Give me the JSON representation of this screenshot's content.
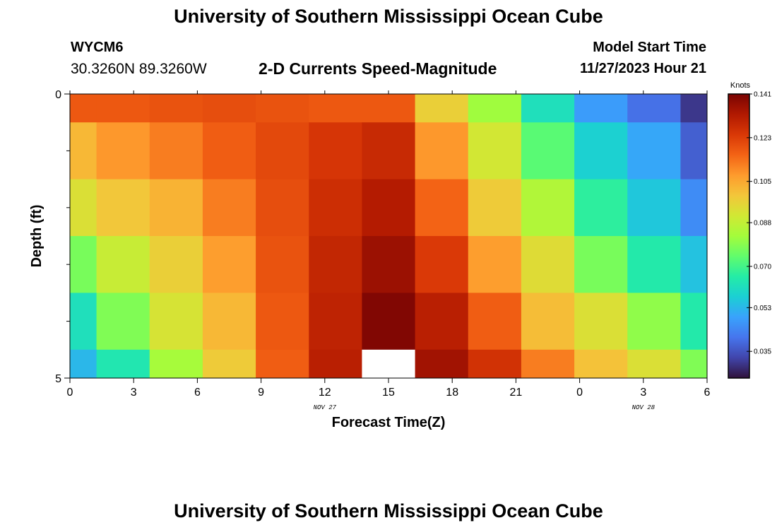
{
  "header": {
    "title": "University of Southern Mississippi Ocean Cube",
    "station_id": "WYCM6",
    "coordinates": "30.3260N  89.3260W",
    "subtitle": "2-D Currents Speed-Magnitude",
    "model_start_label": "Model Start Time",
    "model_start_value": "11/27/2023 Hour 21"
  },
  "footer": {
    "title": "University of Southern Mississippi Ocean Cube"
  },
  "chart_data": {
    "type": "heatmap",
    "title": "2-D Currents Speed-Magnitude",
    "xlabel": "Forecast Time(Z)",
    "ylabel": "Depth (ft)",
    "x_tick_labels": [
      "0",
      "3",
      "6",
      "9",
      "12",
      "15",
      "18",
      "21",
      "0",
      "3",
      "6"
    ],
    "x_hours": [
      0,
      3,
      6,
      9,
      12,
      15,
      18,
      21,
      24,
      27,
      30
    ],
    "date_labels": [
      {
        "text": "NOV 27",
        "hour": 12
      },
      {
        "text": "NOV 28",
        "hour": 27
      }
    ],
    "xlim": [
      0,
      30
    ],
    "ylim": [
      0,
      5
    ],
    "y_tick_labels": [
      "0",
      "5"
    ],
    "y_minor_ticks": [
      1,
      2,
      3,
      4
    ],
    "column_bounds_hours": [
      0,
      1.25,
      3.75,
      6.25,
      8.75,
      11.25,
      13.75,
      16.25,
      18.75,
      21.25,
      23.75,
      26.25,
      28.75,
      30
    ],
    "row_bounds_ft": [
      0,
      0.5,
      1.5,
      2.5,
      3.5,
      4.5,
      5
    ],
    "values": [
      [
        0.118,
        0.118,
        0.119,
        0.12,
        0.119,
        0.118,
        0.118,
        0.097,
        0.082,
        0.062,
        0.048,
        0.04,
        0.03
      ],
      [
        0.102,
        0.108,
        0.112,
        0.117,
        0.121,
        0.125,
        0.128,
        0.108,
        0.091,
        0.073,
        0.058,
        0.05,
        0.037
      ],
      [
        0.093,
        0.099,
        0.103,
        0.112,
        0.12,
        0.127,
        0.132,
        0.116,
        0.098,
        0.085,
        0.067,
        0.056,
        0.045
      ],
      [
        0.077,
        0.089,
        0.097,
        0.107,
        0.119,
        0.129,
        0.136,
        0.124,
        0.107,
        0.094,
        0.077,
        0.065,
        0.055
      ],
      [
        0.062,
        0.078,
        0.092,
        0.102,
        0.118,
        0.13,
        0.14,
        0.131,
        0.117,
        0.101,
        0.093,
        0.08,
        0.065
      ],
      [
        0.053,
        0.064,
        0.083,
        0.098,
        0.117,
        0.131,
        null,
        0.135,
        0.126,
        0.112,
        0.1,
        0.093,
        0.078
      ]
    ],
    "colorbar": {
      "label": "Knots",
      "min": 0.024,
      "max": 0.141,
      "tick_labels": [
        "0.141",
        "0.123",
        "0.105",
        "0.088",
        "0.070",
        "0.053",
        "0.035"
      ],
      "tick_values": [
        0.141,
        0.123,
        0.105,
        0.088,
        0.07,
        0.053,
        0.035
      ],
      "colors": [
        "#30123b",
        "#4145ab",
        "#4675ed",
        "#39a2fc",
        "#1bcfd4",
        "#24eca6",
        "#61fc6c",
        "#a4fc3b",
        "#d1e834",
        "#f3c63a",
        "#fe9b2d",
        "#f36315",
        "#d93806",
        "#b11901",
        "#7a0403"
      ]
    },
    "missing_color": "#ffffff"
  }
}
